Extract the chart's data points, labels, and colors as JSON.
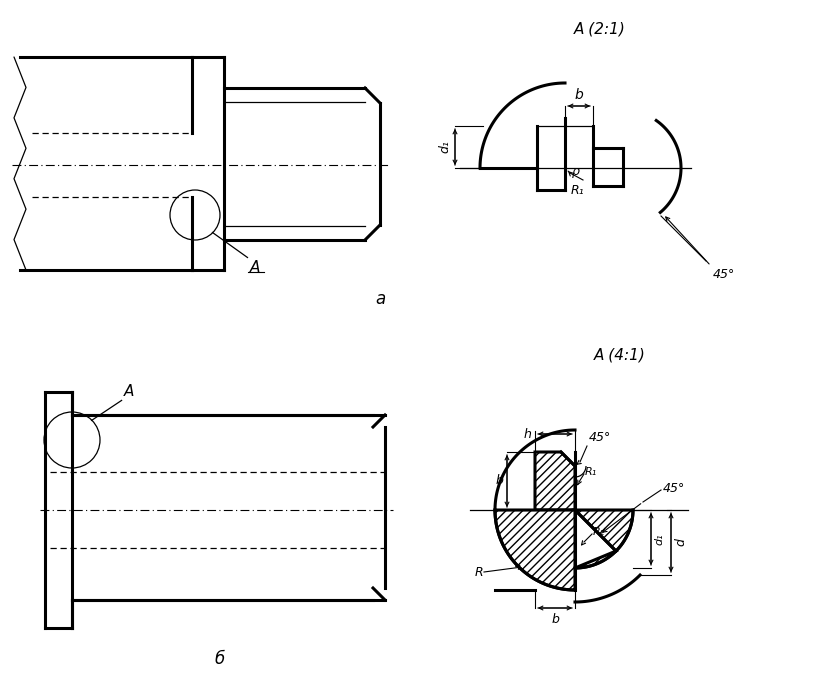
{
  "bg_color": "#ffffff",
  "line_color": "#000000",
  "title_a": "A (2:1)",
  "title_b": "A (4:1)",
  "label_a_view": "a",
  "label_b_view": "б",
  "label_A": "A",
  "label_45": "45°",
  "label_b": "b",
  "label_d1": "d₁",
  "label_R1": "R₁",
  "label_R2": "R₂",
  "label_R": "R",
  "label_d": "d",
  "label_h": "h",
  "label_rho": "ρ"
}
